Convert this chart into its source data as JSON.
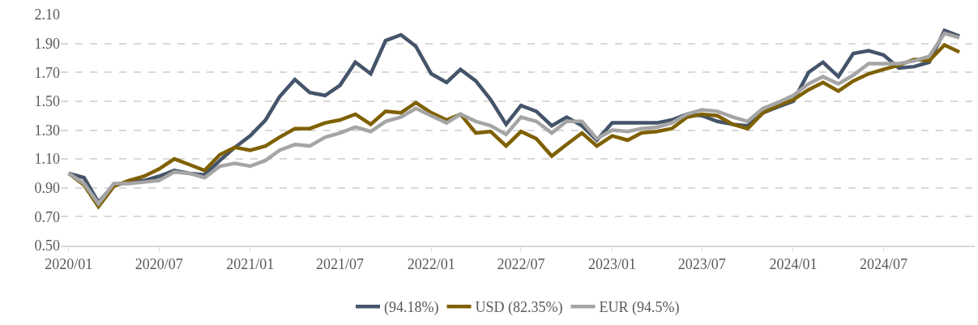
{
  "chart_data": {
    "type": "line",
    "x": [
      "2020-01",
      "2020-02",
      "2020-03",
      "2020-04",
      "2020-05",
      "2020-06",
      "2020-07",
      "2020-08",
      "2020-09",
      "2020-10",
      "2020-11",
      "2020-12",
      "2021-01",
      "2021-02",
      "2021-03",
      "2021-04",
      "2021-05",
      "2021-06",
      "2021-07",
      "2021-08",
      "2021-09",
      "2021-10",
      "2021-11",
      "2021-12",
      "2022-01",
      "2022-02",
      "2022-03",
      "2022-04",
      "2022-05",
      "2022-06",
      "2022-07",
      "2022-08",
      "2022-09",
      "2022-10",
      "2022-11",
      "2022-12",
      "2023-01",
      "2023-02",
      "2023-03",
      "2023-04",
      "2023-05",
      "2023-06",
      "2023-07",
      "2023-08",
      "2023-09",
      "2023-10",
      "2023-11",
      "2023-12",
      "2024-01",
      "2024-02",
      "2024-03",
      "2024-04",
      "2024-05",
      "2024-06",
      "2024-07",
      "2024-08",
      "2024-09",
      "2024-10",
      "2024-11",
      "2024-12"
    ],
    "series": [
      {
        "name": "(94.18%)",
        "color": "#44546a",
        "values": [
          1.0,
          0.97,
          0.8,
          0.92,
          0.94,
          0.95,
          0.98,
          1.02,
          1.0,
          0.99,
          1.09,
          1.18,
          1.26,
          1.37,
          1.53,
          1.65,
          1.56,
          1.54,
          1.61,
          1.77,
          1.69,
          1.92,
          1.96,
          1.88,
          1.69,
          1.63,
          1.72,
          1.64,
          1.51,
          1.34,
          1.47,
          1.43,
          1.33,
          1.39,
          1.33,
          1.23,
          1.35,
          1.35,
          1.35,
          1.35,
          1.37,
          1.41,
          1.4,
          1.36,
          1.34,
          1.33,
          1.42,
          1.46,
          1.5,
          1.7,
          1.77,
          1.67,
          1.83,
          1.85,
          1.82,
          1.73,
          1.74,
          1.77,
          1.99,
          1.95
        ]
      },
      {
        "name": "USD (82.35%)",
        "color": "#7f6000",
        "values": [
          1.0,
          0.92,
          0.77,
          0.91,
          0.95,
          0.98,
          1.03,
          1.1,
          1.06,
          1.02,
          1.13,
          1.18,
          1.16,
          1.19,
          1.25,
          1.31,
          1.31,
          1.35,
          1.37,
          1.41,
          1.34,
          1.43,
          1.42,
          1.49,
          1.42,
          1.37,
          1.41,
          1.28,
          1.29,
          1.19,
          1.29,
          1.24,
          1.12,
          1.2,
          1.28,
          1.19,
          1.26,
          1.23,
          1.28,
          1.29,
          1.31,
          1.39,
          1.41,
          1.4,
          1.34,
          1.31,
          1.42,
          1.47,
          1.51,
          1.58,
          1.63,
          1.57,
          1.64,
          1.69,
          1.72,
          1.75,
          1.79,
          1.78,
          1.89,
          1.84
        ]
      },
      {
        "name": "EUR (94.5%)",
        "color": "#a5a5a5",
        "values": [
          1.0,
          0.93,
          0.79,
          0.93,
          0.93,
          0.94,
          0.95,
          1.01,
          1.0,
          0.97,
          1.05,
          1.07,
          1.05,
          1.09,
          1.16,
          1.2,
          1.19,
          1.25,
          1.28,
          1.32,
          1.29,
          1.36,
          1.39,
          1.45,
          1.4,
          1.35,
          1.41,
          1.36,
          1.33,
          1.27,
          1.39,
          1.36,
          1.28,
          1.36,
          1.36,
          1.24,
          1.3,
          1.29,
          1.31,
          1.32,
          1.35,
          1.41,
          1.44,
          1.43,
          1.39,
          1.36,
          1.45,
          1.49,
          1.54,
          1.62,
          1.67,
          1.62,
          1.68,
          1.76,
          1.76,
          1.76,
          1.78,
          1.81,
          1.97,
          1.94
        ]
      }
    ],
    "xlim": [
      "2019-12-16",
      "2025-01-01"
    ],
    "xticks": [
      {
        "value": "2020-01",
        "label": "2020/01"
      },
      {
        "value": "2020-07",
        "label": "2020/07"
      },
      {
        "value": "2021-01",
        "label": "2021/01"
      },
      {
        "value": "2021-07",
        "label": "2021/07"
      },
      {
        "value": "2022-01",
        "label": "2022/01"
      },
      {
        "value": "2022-07",
        "label": "2022/07"
      },
      {
        "value": "2023-01",
        "label": "2023/01"
      },
      {
        "value": "2023-07",
        "label": "2023/07"
      },
      {
        "value": "2024-01",
        "label": "2024/01"
      },
      {
        "value": "2024-07",
        "label": "2024/07"
      }
    ],
    "ylim": [
      0.5,
      2.1
    ],
    "yticks": [
      {
        "value": 0.5,
        "label": "0.50"
      },
      {
        "value": 0.7,
        "label": "0.70"
      },
      {
        "value": 0.9,
        "label": "0.90"
      },
      {
        "value": 1.1,
        "label": "1.10"
      },
      {
        "value": 1.3,
        "label": "1.30"
      },
      {
        "value": 1.5,
        "label": "1.50"
      },
      {
        "value": 1.7,
        "label": "1.70"
      },
      {
        "value": 1.9,
        "label": "1.90"
      },
      {
        "value": 2.1,
        "label": "2.10"
      }
    ],
    "grid": "y",
    "legend": "bottom",
    "marker": "none",
    "line_style": "solid"
  }
}
